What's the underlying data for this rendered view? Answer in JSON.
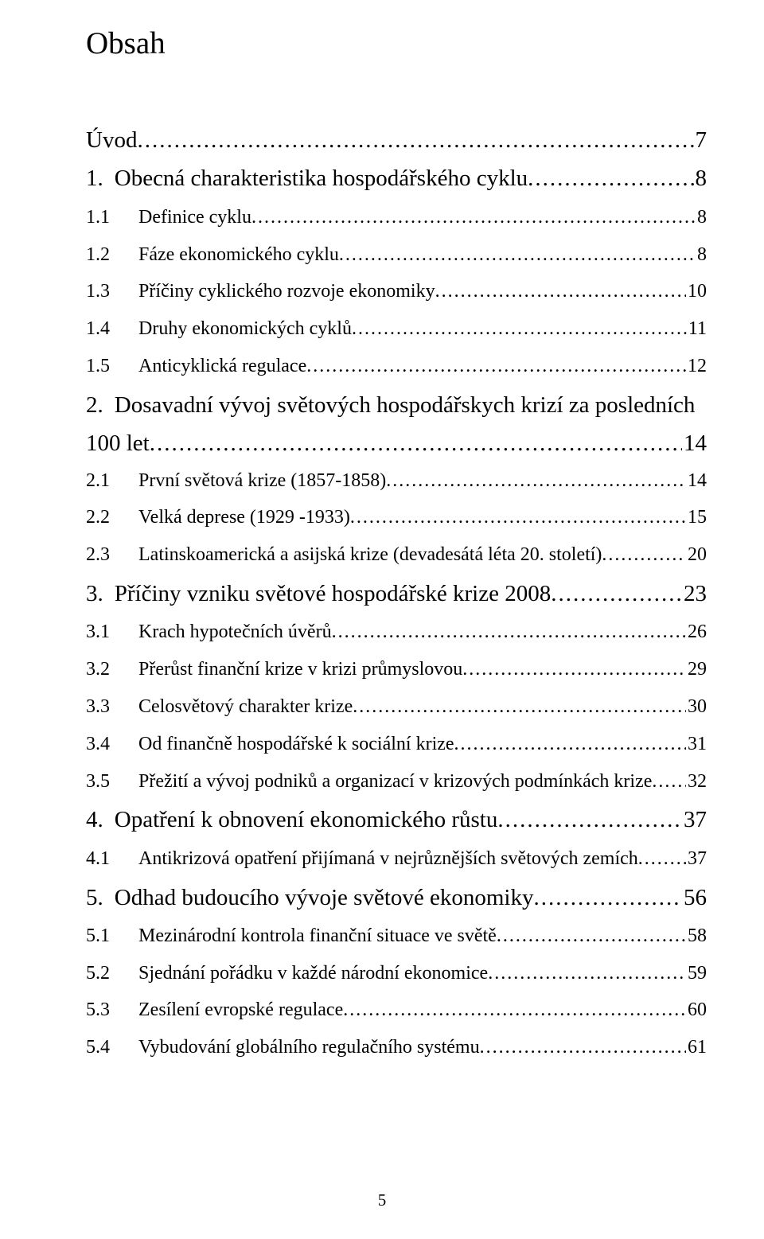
{
  "title": "Obsah",
  "pageNumber": "5",
  "entries": [
    {
      "level": "uvod",
      "num": "",
      "text": "Úvod",
      "page": "7"
    },
    {
      "level": 1,
      "num": "1.",
      "text": "Obecná charakteristika hospodářského cyklu",
      "page": "8"
    },
    {
      "level": 2,
      "num": "1.1",
      "text": "Definice cyklu",
      "page": "8"
    },
    {
      "level": 2,
      "num": "1.2",
      "text": "Fáze ekonomického cyklu",
      "page": "8"
    },
    {
      "level": 2,
      "num": "1.3",
      "text": "Příčiny cyklického rozvoje ekonomiky",
      "page": "10"
    },
    {
      "level": 2,
      "num": "1.4",
      "text": "Druhy ekonomických cyklů",
      "page": "11"
    },
    {
      "level": 2,
      "num": "1.5",
      "text": "Anticyklická regulace",
      "page": "12"
    },
    {
      "level": 1,
      "num": "2.",
      "text": "Dosavadní vývoj světových hospodářskych krizí za posledních",
      "wrap": true
    },
    {
      "level": "1cont",
      "text": "100 let",
      "page": "14"
    },
    {
      "level": 2,
      "num": "2.1",
      "text": "První světová krize (1857-1858)",
      "page": "14"
    },
    {
      "level": 2,
      "num": "2.2",
      "text": "Velká deprese (1929 -1933)",
      "page": "15"
    },
    {
      "level": 2,
      "num": "2.3",
      "text": "Latinskoamerická a asijská krize (devadesátá léta 20. století)",
      "page": "20"
    },
    {
      "level": 1,
      "num": "3.",
      "text": "Příčiny vzniku světové hospodářské krize 2008",
      "page": "23"
    },
    {
      "level": 2,
      "num": "3.1",
      "text": "Krach hypotečních úvěrů",
      "page": "26"
    },
    {
      "level": 2,
      "num": "3.2",
      "text": "Přerůst finanční krize v krizi průmyslovou",
      "page": "29"
    },
    {
      "level": 2,
      "num": "3.3",
      "text": "Celosvětový charakter krize",
      "page": "30"
    },
    {
      "level": 2,
      "num": "3.4",
      "text": "Od finančně hospodářské k sociální krize",
      "page": "31"
    },
    {
      "level": 2,
      "num": "3.5",
      "text": "Přežití a vývoj podniků a organizací v krizových podmínkách krize",
      "page": "32"
    },
    {
      "level": 1,
      "num": "4.",
      "text": "Opatření k obnovení ekonomického růstu",
      "page": "37"
    },
    {
      "level": 2,
      "num": "4.1",
      "text": "Antikrizová opatření přijímaná v nejrůznějších světových zemích",
      "page": "37"
    },
    {
      "level": 1,
      "num": "5.",
      "text": "Odhad budoucího vývoje světové ekonomiky",
      "page": "56"
    },
    {
      "level": 2,
      "num": "5.1",
      "text": "Mezinárodní kontrola finanční situace ve světě",
      "page": "58"
    },
    {
      "level": 2,
      "num": "5.2",
      "text": "Sjednání pořádku v každé národní ekonomice",
      "page": "59"
    },
    {
      "level": 2,
      "num": "5.3",
      "text": "Zesílení evropské regulace",
      "page": "60"
    },
    {
      "level": 2,
      "num": "5.4",
      "text": "Vybudování globálního regulačního systému",
      "page": "61"
    }
  ]
}
